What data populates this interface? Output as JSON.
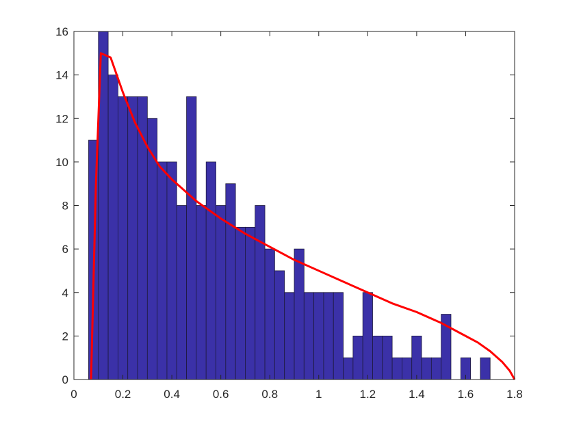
{
  "chart_data": {
    "type": "bar",
    "bin_width": 0.04,
    "bin_starts": [
      0.06,
      0.1,
      0.14,
      0.18,
      0.22,
      0.26,
      0.3,
      0.34,
      0.38,
      0.42,
      0.46,
      0.5,
      0.54,
      0.58,
      0.62,
      0.66,
      0.7,
      0.74,
      0.78,
      0.82,
      0.86,
      0.9,
      0.94,
      0.98,
      1.02,
      1.06,
      1.1,
      1.14,
      1.18,
      1.22,
      1.26,
      1.3,
      1.34,
      1.38,
      1.42,
      1.46,
      1.5,
      1.54,
      1.58,
      1.62,
      1.66,
      1.7,
      1.74,
      1.78
    ],
    "values": [
      11,
      16,
      14,
      13,
      13,
      13,
      12,
      10,
      10,
      8,
      13,
      8,
      10,
      8,
      9,
      7,
      7,
      8,
      6,
      5,
      4,
      6,
      4,
      4,
      4,
      4,
      1,
      2,
      4,
      2,
      2,
      1,
      1,
      2,
      1,
      1,
      3,
      0,
      1,
      0,
      1,
      0,
      0,
      0
    ],
    "curve": {
      "x": [
        0.07,
        0.09,
        0.11,
        0.15,
        0.2,
        0.25,
        0.3,
        0.35,
        0.4,
        0.5,
        0.6,
        0.7,
        0.8,
        0.9,
        1.0,
        1.1,
        1.2,
        1.3,
        1.4,
        1.5,
        1.6,
        1.65,
        1.7,
        1.75,
        1.78,
        1.8
      ],
      "y": [
        0,
        9,
        15,
        14.8,
        13.2,
        11.8,
        10.7,
        9.8,
        9.2,
        8.2,
        7.4,
        6.7,
        6.1,
        5.5,
        5.0,
        4.5,
        4.0,
        3.5,
        3.1,
        2.6,
        2.0,
        1.7,
        1.3,
        0.8,
        0.4,
        0
      ]
    },
    "xlim": [
      0,
      1.8
    ],
    "ylim": [
      0,
      16
    ],
    "x_ticks": [
      0,
      0.2,
      0.4,
      0.6,
      0.8,
      1,
      1.2,
      1.4,
      1.6,
      1.8
    ],
    "x_tick_labels": [
      "0",
      "0.2",
      "0.4",
      "0.6",
      "0.8",
      "1",
      "1.2",
      "1.4",
      "1.6",
      "1.8"
    ],
    "y_ticks": [
      0,
      2,
      4,
      6,
      8,
      10,
      12,
      14,
      16
    ],
    "y_tick_labels": [
      "0",
      "2",
      "4",
      "6",
      "8",
      "10",
      "12",
      "14",
      "16"
    ],
    "title": "",
    "xlabel": "",
    "ylabel": "",
    "grid": false,
    "colors": {
      "bar_fill": "#3b31a8",
      "bar_edge": "#1e1a3d",
      "curve": "#ff0000",
      "axis": "#262626"
    }
  }
}
